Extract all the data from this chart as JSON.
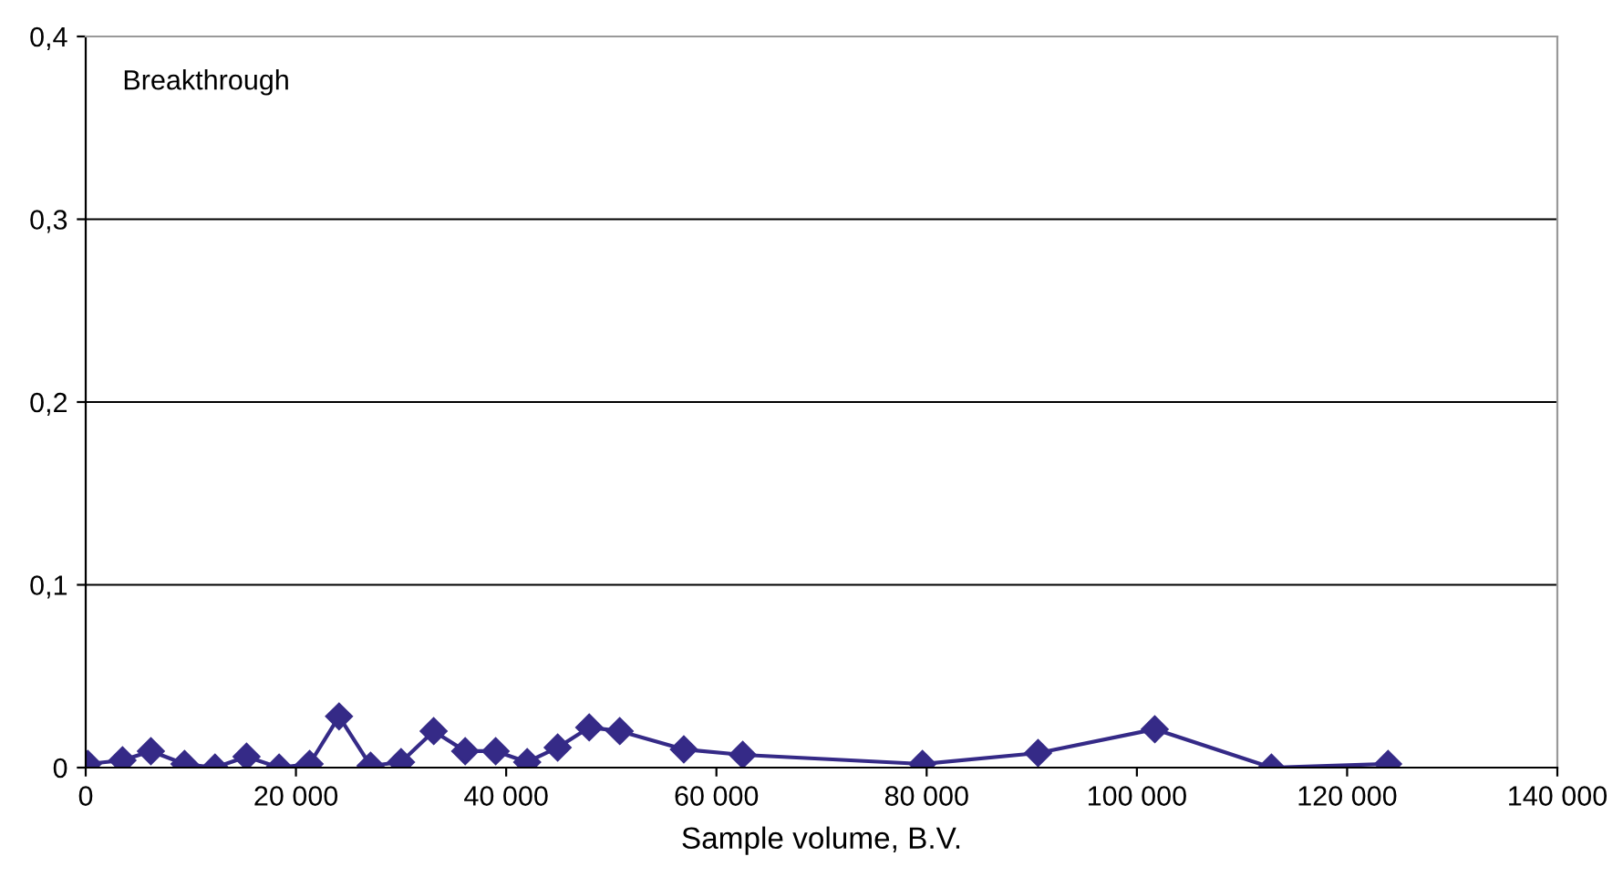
{
  "chart_data": {
    "type": "line",
    "xlabel": "Sample volume, B.V.",
    "annotations": [
      "Breakthrough"
    ],
    "x": [
      200,
      3500,
      6200,
      9400,
      12300,
      15300,
      18400,
      21300,
      24100,
      27100,
      30000,
      33100,
      36100,
      39000,
      42000,
      44900,
      47900,
      50800,
      56900,
      62500,
      79600,
      90600,
      101700,
      112800,
      123900
    ],
    "series": [
      {
        "color": "#352a87",
        "values": [
          0.002,
          0.004,
          0.009,
          0.002,
          0,
          0.006,
          0,
          0.002,
          0.028,
          0.001,
          0.003,
          0.02,
          0.009,
          0.009,
          0.003,
          0.011,
          0.022,
          0.02,
          0.01,
          0.007,
          0.002,
          0.008,
          0.021,
          0,
          0.002
        ]
      }
    ],
    "xlim": [
      0,
      140000
    ],
    "xticks": [
      {
        "value": 0,
        "label": "0"
      },
      {
        "value": 20000,
        "label": "20 000"
      },
      {
        "value": 40000,
        "label": "40 000"
      },
      {
        "value": 60000,
        "label": "60 000"
      },
      {
        "value": 80000,
        "label": "80 000"
      },
      {
        "value": 100000,
        "label": "100 000"
      },
      {
        "value": 120000,
        "label": "120 000"
      },
      {
        "value": 140000,
        "label": "140 000"
      }
    ],
    "ylim": [
      0,
      0.4
    ],
    "yticks": [
      {
        "value": 0,
        "label": "0"
      },
      {
        "value": 0.1,
        "label": "0,1"
      },
      {
        "value": 0.2,
        "label": "0,2"
      },
      {
        "value": 0.3,
        "label": "0,3"
      },
      {
        "value": 0.4,
        "label": "0,4"
      }
    ],
    "grid": "y",
    "marker": "diamond",
    "line_style": "solid",
    "legend": false
  }
}
